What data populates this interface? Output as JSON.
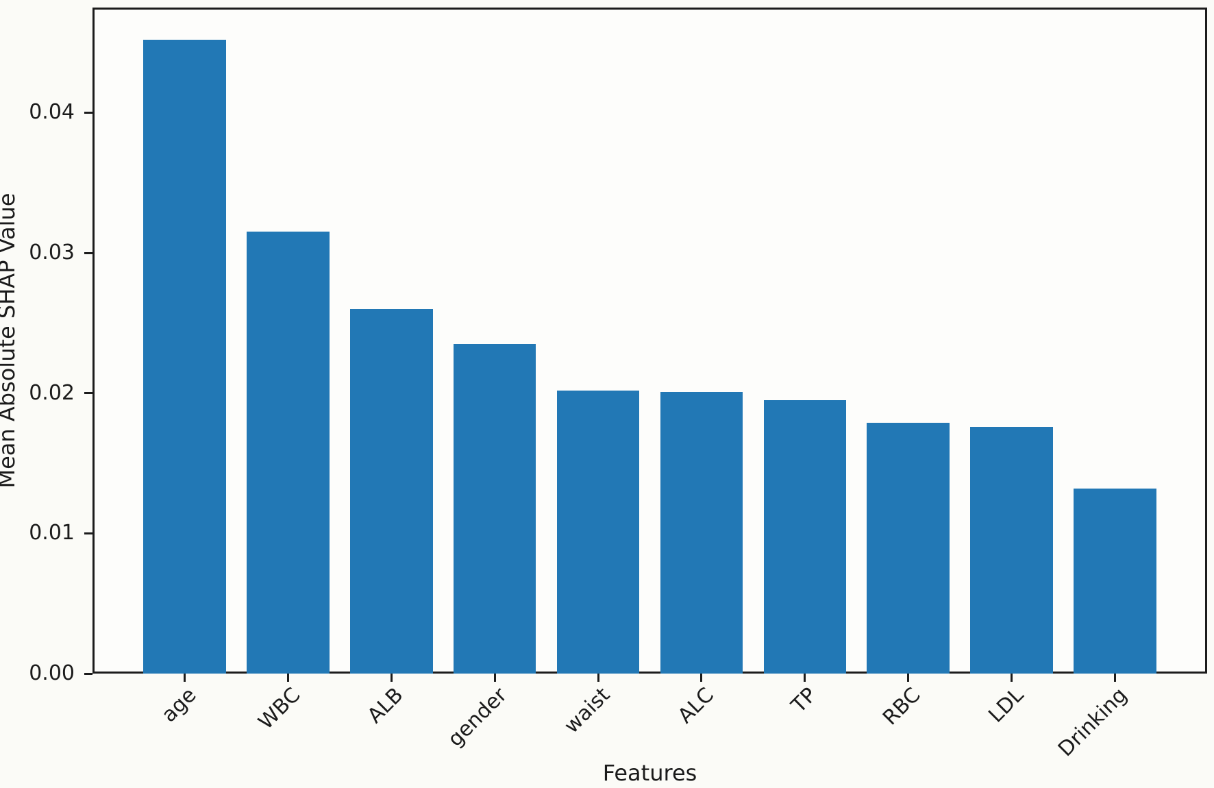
{
  "figure": {
    "background_color": "#fbfbf7",
    "axis_color": "#1c1c1c",
    "text_color": "#1b1b1b"
  },
  "chart_data": {
    "type": "bar",
    "title": "",
    "xlabel": "Features",
    "ylabel": "Mean Absolute SHAP Value",
    "categories": [
      "age",
      "WBC",
      "ALB",
      "gender",
      "waist",
      "ALC",
      "TP",
      "RBC",
      "LDL",
      "Drinking"
    ],
    "values": [
      0.0452,
      0.0315,
      0.026,
      0.0235,
      0.0202,
      0.0201,
      0.0195,
      0.0179,
      0.0176,
      0.0132
    ],
    "ylim": [
      0,
      0.0475
    ],
    "yticks": [
      0,
      0.01,
      0.02,
      0.03,
      0.04
    ],
    "ytick_labels": [
      "0.00",
      "0.01",
      "0.02",
      "0.03",
      "0.04"
    ],
    "bar_color": "#2278b5",
    "bar_width_fraction": 0.8,
    "x_edge_margin_units": 0.89,
    "x_tick_rotation_deg": 45,
    "grid": false,
    "legend_position": "none"
  }
}
